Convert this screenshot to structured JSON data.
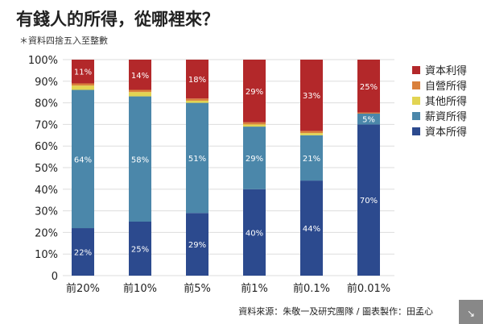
{
  "title": "有錢人的所得，從哪裡來？",
  "note": "＊資料四捨五入至整數",
  "source": "資料來源：朱敬一及研究團隊 / 圖表製作：田孟心",
  "expand_icon": "expand-arrow-icon",
  "chart_data": {
    "type": "bar",
    "stacked": true,
    "title": "有錢人的所得，從哪裡來？",
    "xlabel": "",
    "ylabel": "",
    "ylim": [
      0,
      100
    ],
    "yticks": [
      "0",
      "10%",
      "20%",
      "30%",
      "40%",
      "50%",
      "60%",
      "70%",
      "80%",
      "90%",
      "100%"
    ],
    "grid": true,
    "legend_position": "right",
    "categories": [
      "前20%",
      "前10%",
      "前5%",
      "前1%",
      "前0.1%",
      "前0.01%"
    ],
    "series": [
      {
        "name": "資本所得",
        "color": "#2c4a8e",
        "values": [
          22,
          25,
          29,
          40,
          44,
          70
        ],
        "labels": [
          "22%",
          "25%",
          "29%",
          "40%",
          "44%",
          "70%"
        ]
      },
      {
        "name": "薪資所得",
        "color": "#4b87aa",
        "values": [
          64,
          58,
          51,
          29,
          21,
          5
        ],
        "labels": [
          "64%",
          "58%",
          "51%",
          "29%",
          "21%",
          "5%"
        ]
      },
      {
        "name": "其他所得",
        "color": "#e2d452",
        "values": [
          2,
          2,
          1,
          1,
          1,
          0
        ],
        "labels": [
          "",
          "",
          "",
          "",
          "",
          ""
        ]
      },
      {
        "name": "自營所得",
        "color": "#d9803c",
        "values": [
          1,
          1,
          1,
          1,
          1,
          0.5
        ],
        "labels": [
          "",
          "",
          "",
          "",
          "",
          ""
        ]
      },
      {
        "name": "資本利得",
        "color": "#b3282a",
        "values": [
          11,
          14,
          18,
          29,
          33,
          25
        ],
        "labels": [
          "11%",
          "14%",
          "18%",
          "29%",
          "33%",
          "25%"
        ]
      }
    ],
    "legend_order": [
      "資本利得",
      "自營所得",
      "其他所得",
      "薪資所得",
      "資本所得"
    ]
  }
}
